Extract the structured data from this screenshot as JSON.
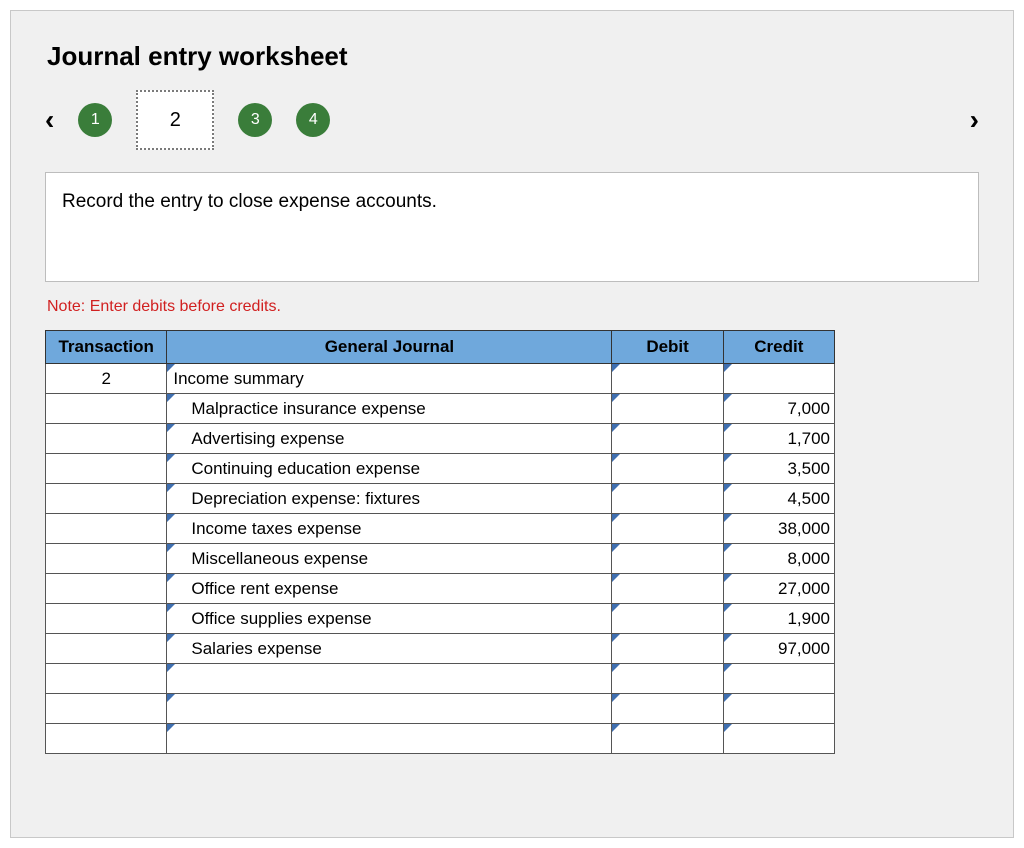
{
  "title": "Journal entry worksheet",
  "nav": {
    "prev_glyph": "‹",
    "next_glyph": "›",
    "steps": [
      {
        "label": "1",
        "style": "pill"
      },
      {
        "label": "2",
        "style": "active"
      },
      {
        "label": "3",
        "style": "pill"
      },
      {
        "label": "4",
        "style": "pill"
      }
    ]
  },
  "instruction": "Record the entry to close expense accounts.",
  "note": "Note: Enter debits before credits.",
  "table": {
    "headers": {
      "transaction": "Transaction",
      "general_journal": "General Journal",
      "debit": "Debit",
      "credit": "Credit"
    },
    "header_bg": "#6fa8dc",
    "tick_color": "#3f6fb0",
    "column_widths": {
      "transaction": 120,
      "general_journal": 440,
      "debit": 110,
      "credit": 110
    },
    "rows": [
      {
        "tx": "2",
        "gj": "Income summary",
        "indent": false,
        "debit": "",
        "credit": ""
      },
      {
        "tx": "",
        "gj": "Malpractice insurance expense",
        "indent": true,
        "debit": "",
        "credit": "7,000"
      },
      {
        "tx": "",
        "gj": "Advertising expense",
        "indent": true,
        "debit": "",
        "credit": "1,700"
      },
      {
        "tx": "",
        "gj": "Continuing education expense",
        "indent": true,
        "debit": "",
        "credit": "3,500"
      },
      {
        "tx": "",
        "gj": "Depreciation expense: fixtures",
        "indent": true,
        "debit": "",
        "credit": "4,500"
      },
      {
        "tx": "",
        "gj": "Income taxes expense",
        "indent": true,
        "debit": "",
        "credit": "38,000"
      },
      {
        "tx": "",
        "gj": "Miscellaneous expense",
        "indent": true,
        "debit": "",
        "credit": "8,000"
      },
      {
        "tx": "",
        "gj": "Office rent expense",
        "indent": true,
        "debit": "",
        "credit": "27,000"
      },
      {
        "tx": "",
        "gj": "Office supplies expense",
        "indent": true,
        "debit": "",
        "credit": "1,900"
      },
      {
        "tx": "",
        "gj": "Salaries expense",
        "indent": true,
        "debit": "",
        "credit": "97,000"
      },
      {
        "tx": "",
        "gj": "",
        "indent": false,
        "debit": "",
        "credit": ""
      },
      {
        "tx": "",
        "gj": "",
        "indent": false,
        "debit": "",
        "credit": ""
      },
      {
        "tx": "",
        "gj": "",
        "indent": false,
        "debit": "",
        "credit": ""
      }
    ]
  },
  "colors": {
    "page_bg": "#f0f0f0",
    "panel_border": "#c8c8c8",
    "pill_bg": "#3a7d3a",
    "note_color": "#d12020"
  }
}
